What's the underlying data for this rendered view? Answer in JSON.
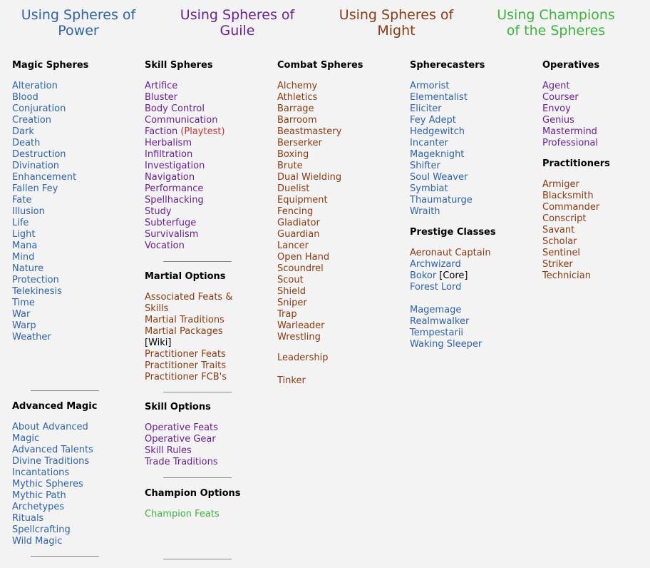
{
  "colors": {
    "power": "#2e62b0",
    "guile": "#6a1f9a",
    "might": "#8b3a12",
    "champions": "#3cb53c",
    "playtest": "#d03030"
  },
  "headers": {
    "power": "Using Spheres of Power",
    "guile": "Using Spheres of Guile",
    "might": "Using Spheres of Might",
    "champions": "Using Champions of the Spheres"
  },
  "col1": {
    "magic_spheres": {
      "heading": "Magic Spheres",
      "items": [
        "Alteration",
        "Blood",
        "Conjuration",
        "Creation",
        "Dark",
        "Death",
        "Destruction",
        "Divination",
        "Enhancement",
        "Fallen Fey",
        "Fate",
        "Illusion",
        "Life",
        "Light",
        "Mana",
        "Mind",
        "Nature",
        "Protection",
        "Telekinesis",
        "Time",
        "War",
        "Warp",
        "Weather"
      ]
    },
    "advanced_magic": {
      "heading": "Advanced Magic",
      "items": [
        "About Advanced Magic",
        "Advanced Talents",
        "Divine Traditions",
        "Incantations",
        "Mythic Spheres",
        "Mythic Path",
        "Archetypes",
        "Rituals",
        "Spellcrafting",
        "Wild Magic"
      ]
    }
  },
  "col2": {
    "skill_spheres": {
      "heading": "Skill Spheres",
      "items": [
        "Artifice",
        "Bluster",
        "Body Control",
        "Communication",
        "Faction",
        "Herbalism",
        "Infiltration",
        "Investigation",
        "Navigation",
        "Performance",
        "Spellhacking",
        "Study",
        "Subterfuge",
        "Survivalism",
        "Vocation"
      ],
      "faction_tag": "(Playtest)"
    },
    "martial_options": {
      "heading": "Martial Options",
      "items": [
        "Associated Feats & Skills",
        "Martial Traditions",
        "Martial Packages",
        "Practitioner Feats",
        "Practitioner Traits",
        "Practitioner FCB's"
      ],
      "wiki": "[Wiki]"
    },
    "skill_options": {
      "heading": "Skill Options",
      "items": [
        "Operative Feats",
        "Operative Gear",
        "Skill Rules",
        "Trade Traditions"
      ]
    },
    "champion_options": {
      "heading": "Champion Options",
      "items": [
        "Champion Feats"
      ]
    }
  },
  "col3": {
    "combat_spheres": {
      "heading": "Combat Spheres",
      "items": [
        "Alchemy",
        "Athletics",
        "Barrage",
        "Barroom",
        "Beastmastery",
        "Berserker",
        "Boxing",
        "Brute",
        "Dual Wielding",
        "Duelist",
        "Equipment",
        "Fencing",
        "Gladiator",
        "Guardian",
        "Lancer",
        "Open Hand",
        "Scoundrel",
        "Scout",
        "Shield",
        "Sniper",
        "Trap",
        "Warleader",
        "Wrestling"
      ]
    },
    "extra": [
      "Leadership",
      "Tinker"
    ]
  },
  "col4": {
    "spherecasters": {
      "heading": "Spherecasters",
      "items": [
        "Armorist",
        "Elementalist",
        "Eliciter",
        "Fey Adept",
        "Hedgewitch",
        "Incanter",
        "Mageknight",
        "Shifter",
        "Soul Weaver",
        "Symbiat",
        "Thaumaturge",
        "Wraith"
      ]
    },
    "prestige": {
      "heading": "Prestige Classes",
      "items_a": [
        "Aeronaut Captain",
        "Archwizard",
        "Bokor",
        "Forest Lord"
      ],
      "bokor_tag": "[Core]",
      "items_b": [
        "Magemage",
        "Realmwalker",
        "Tempestarii",
        "Waking Sleeper"
      ]
    }
  },
  "col5": {
    "operatives": {
      "heading": "Operatives",
      "items": [
        "Agent",
        "Courser",
        "Envoy",
        "Genius",
        "Mastermind",
        "Professional"
      ]
    },
    "practitioners": {
      "heading": "Practitioners",
      "items": [
        "Armiger",
        "Blacksmith",
        "Commander",
        "Conscript",
        "Savant",
        "Scholar",
        "Sentinel",
        "Striker",
        "Technician"
      ]
    }
  }
}
